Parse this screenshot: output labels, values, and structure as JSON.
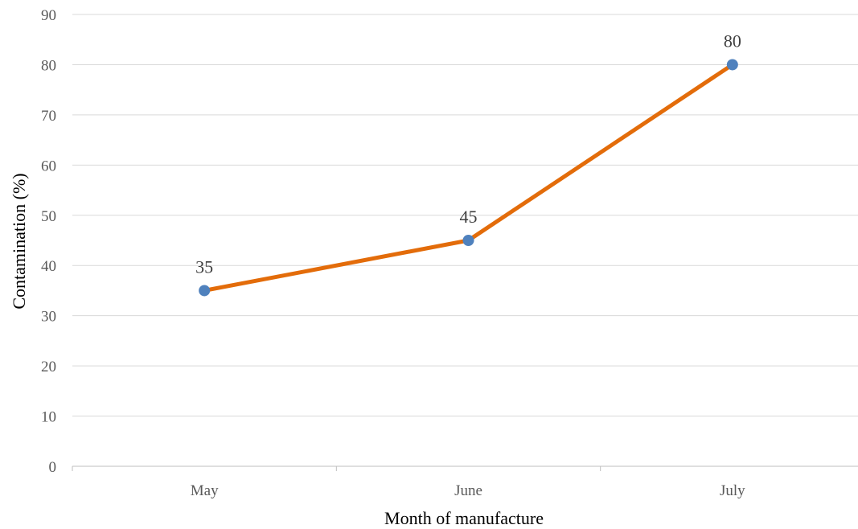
{
  "chart_data": {
    "type": "line",
    "title": "",
    "xlabel": "Month of manufacture",
    "ylabel": "Contamination (%)",
    "categories": [
      "May",
      "June",
      "July"
    ],
    "series": [
      {
        "values": [
          35,
          45,
          80
        ],
        "line_color": "#E36C0A",
        "marker_color": "#4F81BD"
      }
    ],
    "data_labels": [
      "35",
      "45",
      "80"
    ],
    "ylim": [
      0,
      90
    ],
    "yticks": [
      0,
      10,
      20,
      30,
      40,
      50,
      60,
      70,
      80,
      90
    ],
    "grid": true,
    "legend": "none"
  }
}
